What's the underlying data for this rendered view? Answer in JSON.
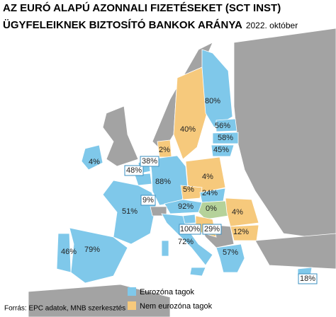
{
  "title": {
    "line1": "AZ EURÓ ALAPÚ AZONNALI FIZETÉSEKET (SCT INST)",
    "line2": "ÜGYFELEIKNEK BIZTOSÍTÓ BANKOK ARÁNYA",
    "date": "2022. október"
  },
  "labels": [
    "80%",
    "40%",
    "56%",
    "58%",
    "45%",
    "2%",
    "4%",
    "48%",
    "38%",
    "9%",
    "88%",
    "4%",
    "5%",
    "24%",
    "92%",
    "0%",
    "4%",
    "100%",
    "29%",
    "12%",
    "51%",
    "72%",
    "79%",
    "46%",
    "57%",
    "18%"
  ],
  "legend": [
    "Eurozóna tagok",
    "Nem eurozóna tagok"
  ],
  "source": "Forrás: EPC adatok, MNB szerkesztés"
}
